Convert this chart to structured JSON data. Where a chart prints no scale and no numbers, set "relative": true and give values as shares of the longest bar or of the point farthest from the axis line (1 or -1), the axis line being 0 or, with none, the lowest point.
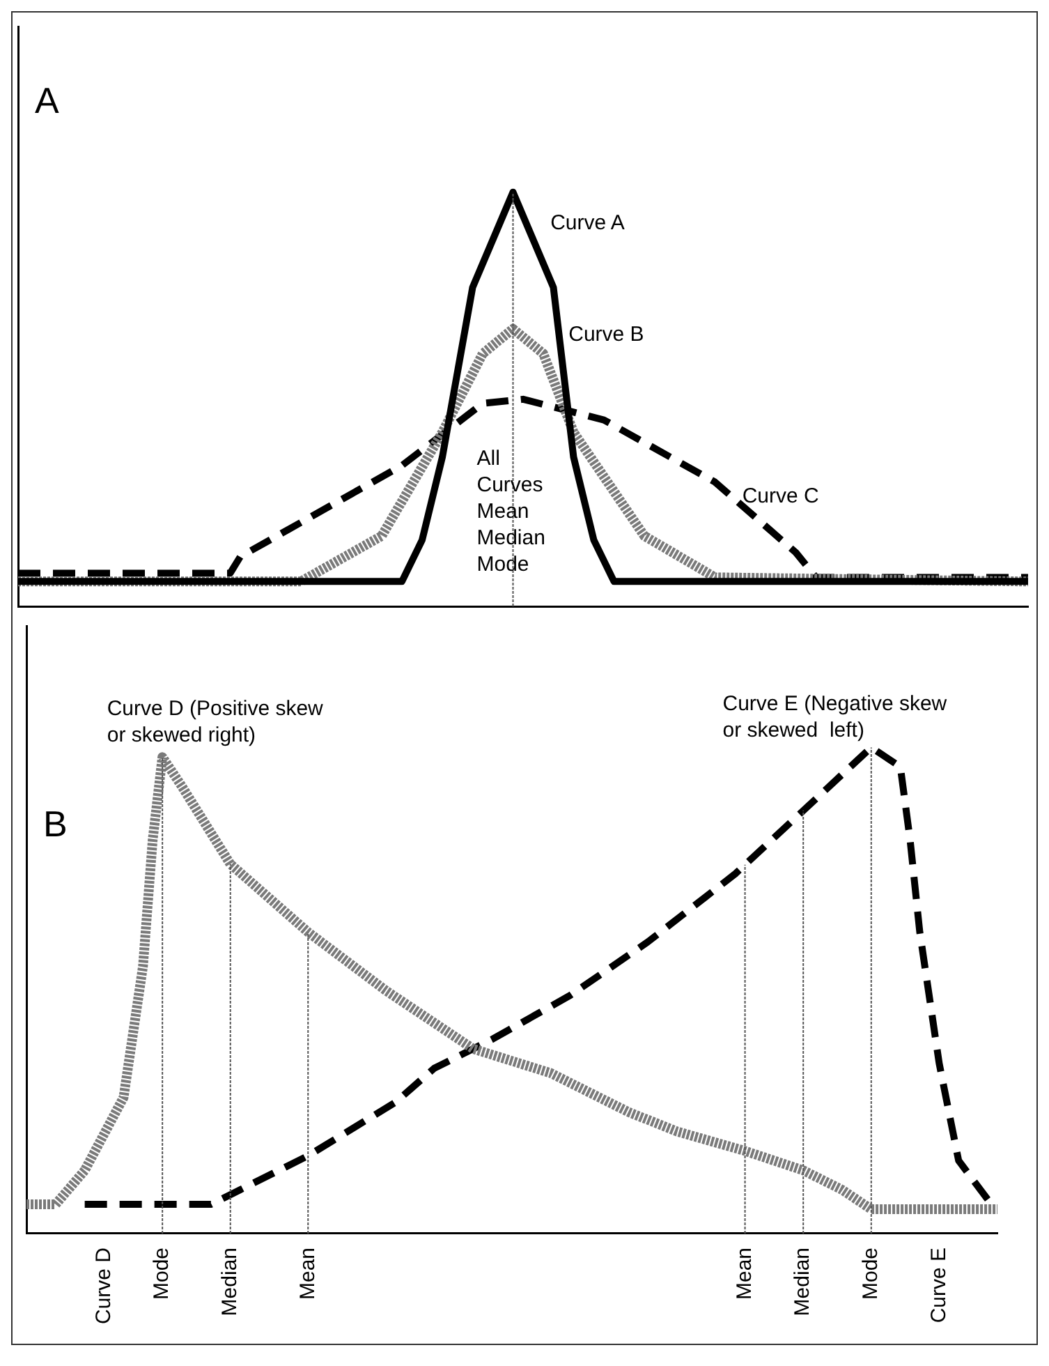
{
  "chart_data": [
    {
      "type": "line",
      "relative": true,
      "legend": false,
      "categories": [
        null,
        null,
        null,
        null,
        null,
        null,
        null,
        null,
        null,
        null,
        null,
        null,
        null,
        null,
        null,
        null,
        null,
        null,
        null,
        null,
        null,
        null,
        null,
        null,
        null,
        null,
        null,
        null,
        null,
        null,
        null,
        null,
        null,
        null,
        null,
        null,
        null,
        null,
        null,
        null,
        null,
        null,
        null,
        null,
        null,
        null,
        null,
        null,
        null,
        null,
        null,
        null,
        null,
        null,
        null,
        null,
        null,
        null,
        null,
        null,
        null,
        null,
        null,
        null,
        null,
        null,
        null,
        null,
        null,
        null,
        null,
        null,
        null,
        null,
        null,
        null,
        null,
        null,
        null,
        null,
        null,
        null,
        null,
        null,
        null,
        null,
        null,
        null,
        null,
        null,
        null,
        null,
        null,
        null,
        null,
        null,
        null,
        null,
        null,
        null,
        null
      ],
      "series": [
        {
          "color": "#000000",
          "line_style": "solid",
          "values": [
            0.06,
            null,
            null,
            null,
            null,
            null,
            null,
            null,
            null,
            null,
            null,
            null,
            null,
            null,
            null,
            null,
            null,
            null,
            null,
            null,
            null,
            null,
            null,
            null,
            null,
            null,
            null,
            null,
            null,
            null,
            null,
            null,
            null,
            null,
            null,
            null,
            null,
            null,
            0.06,
            null,
            0.16,
            null,
            0.36,
            null,
            null,
            0.77,
            null,
            null,
            null,
            1,
            null,
            null,
            null,
            0.77,
            null,
            0.36,
            null,
            0.16,
            null,
            0.06,
            null,
            null,
            null,
            null,
            null,
            null,
            null,
            null,
            null,
            null,
            null,
            null,
            null,
            null,
            null,
            null,
            null,
            null,
            null,
            null,
            null,
            null,
            null,
            null,
            null,
            null,
            null,
            null,
            null,
            null,
            null,
            null,
            null,
            null,
            null,
            null,
            null,
            null,
            null,
            null,
            0.06
          ]
        },
        {
          "color": "#7a7a7a",
          "line_style": "dotted",
          "values": [
            0.06,
            null,
            null,
            null,
            null,
            null,
            null,
            null,
            null,
            null,
            null,
            null,
            null,
            null,
            null,
            null,
            null,
            null,
            null,
            null,
            null,
            null,
            null,
            null,
            null,
            null,
            null,
            null,
            0.06,
            null,
            null,
            null,
            null,
            null,
            null,
            null,
            0.17,
            null,
            null,
            null,
            null,
            null,
            0.42,
            null,
            null,
            null,
            0.61,
            null,
            null,
            0.67,
            null,
            null,
            0.61,
            null,
            null,
            0.42,
            null,
            null,
            null,
            null,
            null,
            null,
            0.17,
            null,
            null,
            null,
            null,
            null,
            null,
            0.07,
            null,
            null,
            null,
            null,
            null,
            null,
            null,
            null,
            null,
            null,
            null,
            null,
            null,
            null,
            null,
            null,
            null,
            null,
            null,
            null,
            null,
            null,
            null,
            null,
            null,
            null,
            null,
            null,
            null,
            null,
            0.06
          ]
        },
        {
          "color": "#000000",
          "line_style": "dashed",
          "values": [
            0.08,
            null,
            null,
            null,
            null,
            null,
            null,
            null,
            null,
            null,
            null,
            null,
            null,
            null,
            null,
            null,
            null,
            null,
            null,
            null,
            null,
            0.08,
            0.12,
            null,
            null,
            null,
            null,
            null,
            null,
            null,
            null,
            null,
            null,
            null,
            null,
            null,
            null,
            null,
            0.34,
            null,
            null,
            null,
            null,
            null,
            null,
            null,
            0.49,
            null,
            null,
            null,
            0.5,
            null,
            null,
            null,
            null,
            null,
            null,
            null,
            0.45,
            null,
            null,
            null,
            null,
            null,
            null,
            null,
            null,
            null,
            null,
            0.3,
            null,
            null,
            null,
            null,
            null,
            null,
            null,
            0.13,
            null,
            0.07,
            null,
            null,
            null,
            null,
            null,
            null,
            null,
            null,
            null,
            null,
            null,
            null,
            null,
            null,
            null,
            null,
            null,
            null,
            null,
            null,
            0.07
          ]
        }
      ],
      "ref_lines": [
        {
          "axis": "x",
          "label": "All\nCurves\nMean\nMedian\nMode",
          "color": "#555555",
          "line_style": "dotted"
        }
      ],
      "annotations": [
        "A",
        "Curve A",
        "Curve B",
        "Curve C"
      ]
    },
    {
      "type": "line",
      "relative": true,
      "legend": false,
      "categories": [
        null,
        null,
        null,
        null,
        null,
        null,
        null,
        null,
        "Curve D",
        null,
        null,
        null,
        null,
        null,
        "Mode",
        null,
        null,
        null,
        null,
        null,
        null,
        "Median",
        null,
        null,
        null,
        null,
        null,
        null,
        null,
        "Mean",
        null,
        null,
        null,
        null,
        null,
        null,
        null,
        null,
        null,
        null,
        null,
        null,
        null,
        null,
        null,
        null,
        null,
        null,
        null,
        null,
        null,
        null,
        null,
        null,
        null,
        null,
        null,
        null,
        null,
        null,
        null,
        null,
        null,
        null,
        null,
        null,
        null,
        null,
        null,
        null,
        null,
        null,
        null,
        null,
        "Mean",
        null,
        null,
        null,
        null,
        null,
        "Median",
        null,
        null,
        null,
        null,
        null,
        null,
        "Mode",
        null,
        null,
        null,
        null,
        null,
        null,
        "Curve E",
        null,
        null,
        null,
        null,
        null,
        null
      ],
      "series": [
        {
          "color": "#7a7a7a",
          "line_style": "dotted",
          "values": [
            0.06,
            null,
            null,
            0.06,
            null,
            null,
            0.13,
            null,
            null,
            null,
            0.28,
            null,
            0.55,
            0.81,
            0.98,
            null,
            0.92,
            null,
            null,
            null,
            null,
            0.76,
            null,
            null,
            null,
            null,
            null,
            null,
            null,
            0.62,
            null,
            null,
            null,
            null,
            null,
            null,
            null,
            0.5,
            null,
            null,
            null,
            null,
            null,
            null,
            null,
            null,
            0.38,
            null,
            null,
            null,
            null,
            null,
            null,
            null,
            0.33,
            null,
            null,
            null,
            null,
            null,
            null,
            null,
            0.25,
            null,
            null,
            null,
            null,
            0.21,
            null,
            null,
            null,
            null,
            null,
            null,
            0.17,
            null,
            null,
            null,
            null,
            null,
            0.13,
            null,
            null,
            null,
            0.09,
            null,
            null,
            0.05,
            null,
            null,
            null,
            null,
            null,
            null,
            null,
            null,
            null,
            null,
            null,
            null,
            0.05
          ]
        },
        {
          "color": "#000000",
          "line_style": "dashed",
          "values": [
            null,
            null,
            null,
            null,
            null,
            null,
            0.06,
            null,
            null,
            null,
            null,
            null,
            null,
            null,
            null,
            null,
            null,
            null,
            null,
            0.06,
            null,
            null,
            0.09,
            null,
            null,
            null,
            null,
            null,
            null,
            0.16,
            null,
            null,
            null,
            null,
            null,
            null,
            null,
            null,
            0.27,
            null,
            null,
            null,
            0.34,
            null,
            null,
            null,
            null,
            null,
            0.4,
            null,
            null,
            null,
            null,
            null,
            null,
            null,
            0.49,
            null,
            null,
            null,
            null,
            null,
            null,
            null,
            0.6,
            null,
            null,
            null,
            null,
            null,
            null,
            null,
            null,
            0.74,
            null,
            null,
            null,
            null,
            null,
            null,
            0.87,
            null,
            null,
            null,
            null,
            null,
            null,
            1,
            null,
            null,
            0.96,
            0.81,
            0.62,
            null,
            0.35,
            null,
            0.15,
            null,
            null,
            0.07,
            null
          ]
        }
      ],
      "grid": "x",
      "annotations": [
        "B",
        "Curve D (Positive skew\nor skewed right)",
        "Curve E (Negative skew\nor skewed  left)"
      ]
    }
  ]
}
